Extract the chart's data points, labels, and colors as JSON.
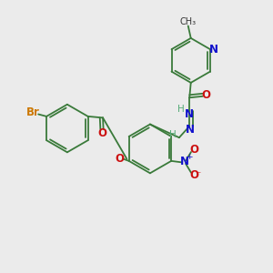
{
  "background_color": "#ebebeb",
  "bond_color": "#3a7a3a",
  "atom_colors": {
    "N": "#1010cc",
    "O": "#cc1010",
    "Br": "#cc7700",
    "H": "#55aa77"
  },
  "font_size_atoms": 8.5,
  "figsize": [
    3.0,
    3.0
  ],
  "dpi": 100
}
